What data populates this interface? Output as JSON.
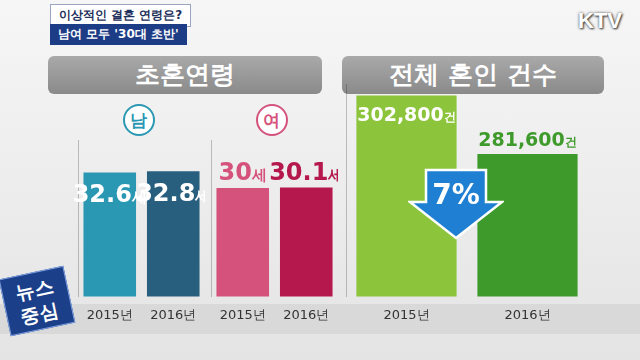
{
  "header": {
    "question": "이상적인 결혼 연령은?",
    "subtitle": "남여 모두 '30대 초반'",
    "channel": "KTV",
    "program": [
      "뉴스",
      "중심"
    ]
  },
  "chart_data": [
    {
      "type": "bar",
      "title": "초혼연령",
      "categories": [
        "2015년",
        "2016년"
      ],
      "series": [
        {
          "name": "남",
          "colors": [
            "#2b98b3",
            "#285f7f"
          ],
          "values": [
            32.6,
            32.8
          ],
          "value_labels": [
            "32.6세",
            "32.8세"
          ]
        },
        {
          "name": "여",
          "colors": [
            "#d5527c",
            "#b5184d"
          ],
          "values": [
            30,
            30.1
          ],
          "value_labels": [
            "30세",
            "30.1세"
          ]
        }
      ],
      "ylim": [
        12,
        38
      ],
      "tick_labels": "x",
      "grid": false,
      "data_labels": true
    },
    {
      "type": "bar",
      "title": "전체 혼인 건수",
      "categories": [
        "2015년",
        "2016년"
      ],
      "values": [
        302800,
        281600
      ],
      "value_labels": [
        "302,800건",
        "281,600건"
      ],
      "colors": [
        "#8cc43c",
        "#3e9a2a"
      ],
      "ylim": [
        230000,
        307000
      ],
      "tick_labels": "x",
      "grid": false,
      "data_labels": true,
      "annotation": "7%"
    }
  ]
}
